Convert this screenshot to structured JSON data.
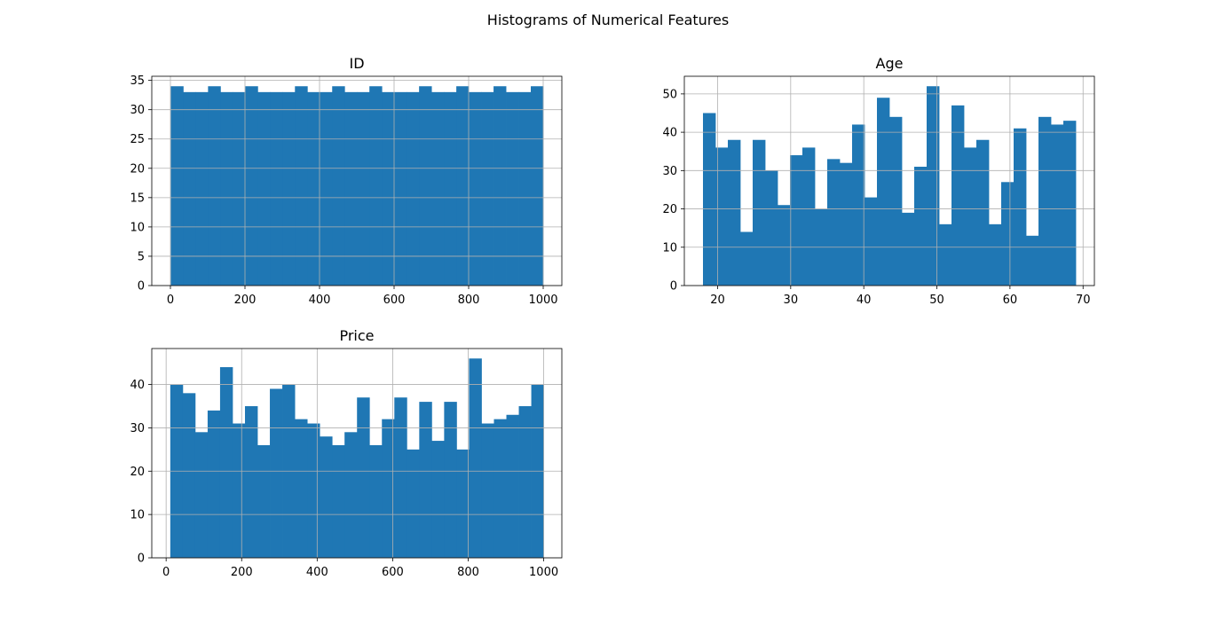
{
  "figure": {
    "title": "Histograms of Numerical Features"
  },
  "chart_data": [
    {
      "type": "bar",
      "title": "ID",
      "xlabel": "",
      "ylabel": "",
      "grid": true,
      "bar_color": "#1f77b4",
      "xlim": [
        -50,
        1050
      ],
      "ylim": [
        0,
        35.7
      ],
      "xticks": [
        0,
        200,
        400,
        600,
        800,
        1000
      ],
      "yticks": [
        0,
        5,
        10,
        15,
        20,
        25,
        30,
        35
      ],
      "bin_start": 1,
      "bin_end": 1000,
      "values": [
        34,
        33,
        33,
        34,
        33,
        33,
        34,
        33,
        33,
        33,
        34,
        33,
        33,
        34,
        33,
        33,
        34,
        33,
        33,
        33,
        34,
        33,
        33,
        34,
        33,
        33,
        34,
        33,
        33,
        34
      ]
    },
    {
      "type": "bar",
      "title": "Age",
      "xlabel": "",
      "ylabel": "",
      "grid": true,
      "bar_color": "#1f77b4",
      "xlim": [
        15.45,
        71.55
      ],
      "ylim": [
        0,
        54.6
      ],
      "xticks": [
        20,
        30,
        40,
        50,
        60,
        70
      ],
      "yticks": [
        0,
        10,
        20,
        30,
        40,
        50
      ],
      "bin_start": 18,
      "bin_end": 69,
      "values": [
        45,
        36,
        38,
        14,
        38,
        30,
        21,
        34,
        36,
        20,
        33,
        32,
        42,
        23,
        49,
        44,
        19,
        31,
        52,
        16,
        47,
        36,
        38,
        16,
        27,
        41,
        13,
        44,
        42,
        43
      ]
    },
    {
      "type": "bar",
      "title": "Price",
      "xlabel": "",
      "ylabel": "",
      "grid": true,
      "bar_color": "#1f77b4",
      "xlim": [
        -38,
        1048
      ],
      "ylim": [
        0,
        48.3
      ],
      "xticks": [
        0,
        200,
        400,
        600,
        800,
        1000
      ],
      "yticks": [
        0,
        10,
        20,
        30,
        40
      ],
      "bin_start": 11,
      "bin_end": 1000,
      "values": [
        40,
        38,
        29,
        34,
        44,
        31,
        35,
        26,
        39,
        40,
        32,
        31,
        28,
        26,
        29,
        37,
        26,
        32,
        37,
        25,
        36,
        27,
        36,
        25,
        46,
        31,
        32,
        33,
        35,
        40
      ]
    }
  ]
}
